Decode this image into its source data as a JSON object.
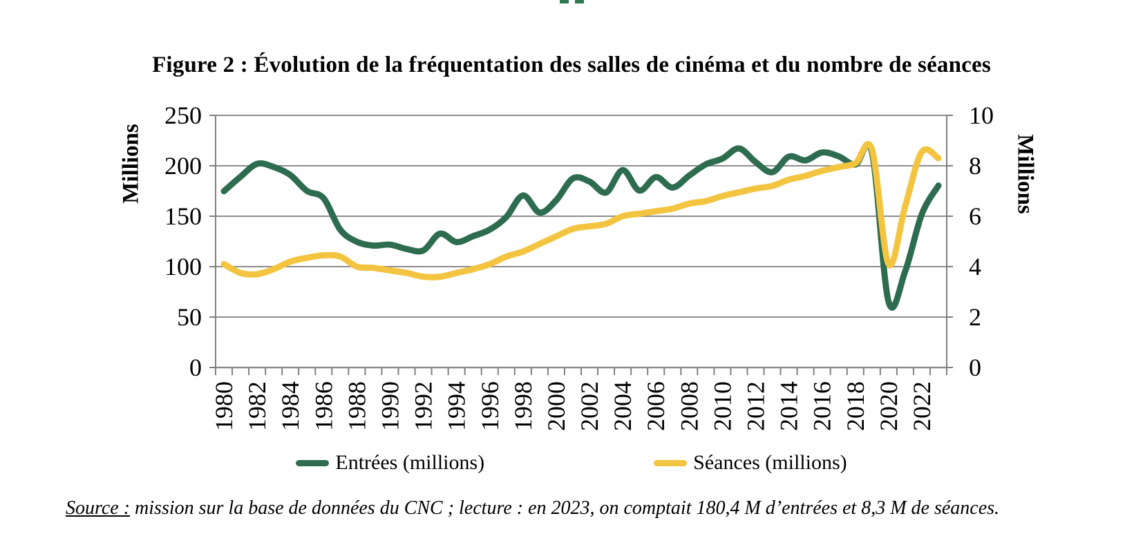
{
  "page": {
    "header_fragment_color": "#2e7a50",
    "background": "#ffffff"
  },
  "title": "Figure 2 : Évolution de la fréquentation des salles de cinéma et du nombre de séances",
  "source": {
    "label": "Source :",
    "text": " mission sur la base de données du CNC ; lecture : en 2023, on comptait 180,4 M d’entrées et 8,3 M de séances."
  },
  "chart_data": {
    "type": "line",
    "grid": true,
    "grid_color": "#8c8c8c",
    "axis_color": "#7f7f7f",
    "legend_position": "bottom",
    "x": [
      1980,
      1981,
      1982,
      1983,
      1984,
      1985,
      1986,
      1987,
      1988,
      1989,
      1990,
      1991,
      1992,
      1993,
      1994,
      1995,
      1996,
      1997,
      1998,
      1999,
      2000,
      2001,
      2002,
      2003,
      2004,
      2005,
      2006,
      2007,
      2008,
      2009,
      2010,
      2011,
      2012,
      2013,
      2014,
      2015,
      2016,
      2017,
      2018,
      2019,
      2020,
      2021,
      2022,
      2023
    ],
    "x_tick_label_step": 2,
    "x_tick_labels": [
      "1980",
      "1982",
      "1984",
      "1986",
      "1988",
      "1990",
      "1992",
      "1994",
      "1996",
      "1998",
      "2000",
      "2002",
      "2004",
      "2006",
      "2008",
      "2010",
      "2012",
      "2014",
      "2016",
      "2018",
      "2020",
      "2022"
    ],
    "left_axis": {
      "title": "Millions",
      "min": 0,
      "max": 250,
      "step": 50,
      "ticks": [
        0,
        50,
        100,
        150,
        200,
        250
      ]
    },
    "right_axis": {
      "title": "Millions",
      "min": 0,
      "max": 10,
      "step": 2,
      "ticks": [
        0,
        2,
        4,
        6,
        8,
        10
      ]
    },
    "series": [
      {
        "name": "Entrées (millions)",
        "axis": "left",
        "color": "#2e6c50",
        "values": [
          174.8,
          189.2,
          201.9,
          198.8,
          190.8,
          175.1,
          167.8,
          136.7,
          124.7,
          120.9,
          121.8,
          117.5,
          116.1,
          132.7,
          124.4,
          130.2,
          136.7,
          149.3,
          170.6,
          153.6,
          165.8,
          187.5,
          184.4,
          173.5,
          195.7,
          175.5,
          188.8,
          178.4,
          190.3,
          201.4,
          207.1,
          217.2,
          203.6,
          193.7,
          209.1,
          205.4,
          213.2,
          209.4,
          201.2,
          213.3,
          65.2,
          95.5,
          152.0,
          180.4
        ]
      },
      {
        "name": "Séances (millions)",
        "axis": "right",
        "color": "#f3c440",
        "values": [
          4.1,
          3.75,
          3.7,
          3.9,
          4.2,
          4.35,
          4.45,
          4.4,
          4.0,
          3.95,
          3.85,
          3.75,
          3.6,
          3.6,
          3.75,
          3.9,
          4.1,
          4.4,
          4.6,
          4.9,
          5.2,
          5.5,
          5.6,
          5.7,
          6.0,
          6.1,
          6.2,
          6.3,
          6.5,
          6.6,
          6.8,
          6.95,
          7.1,
          7.2,
          7.45,
          7.6,
          7.8,
          7.95,
          8.1,
          8.65,
          4.1,
          6.4,
          8.55,
          8.3
        ]
      }
    ]
  }
}
